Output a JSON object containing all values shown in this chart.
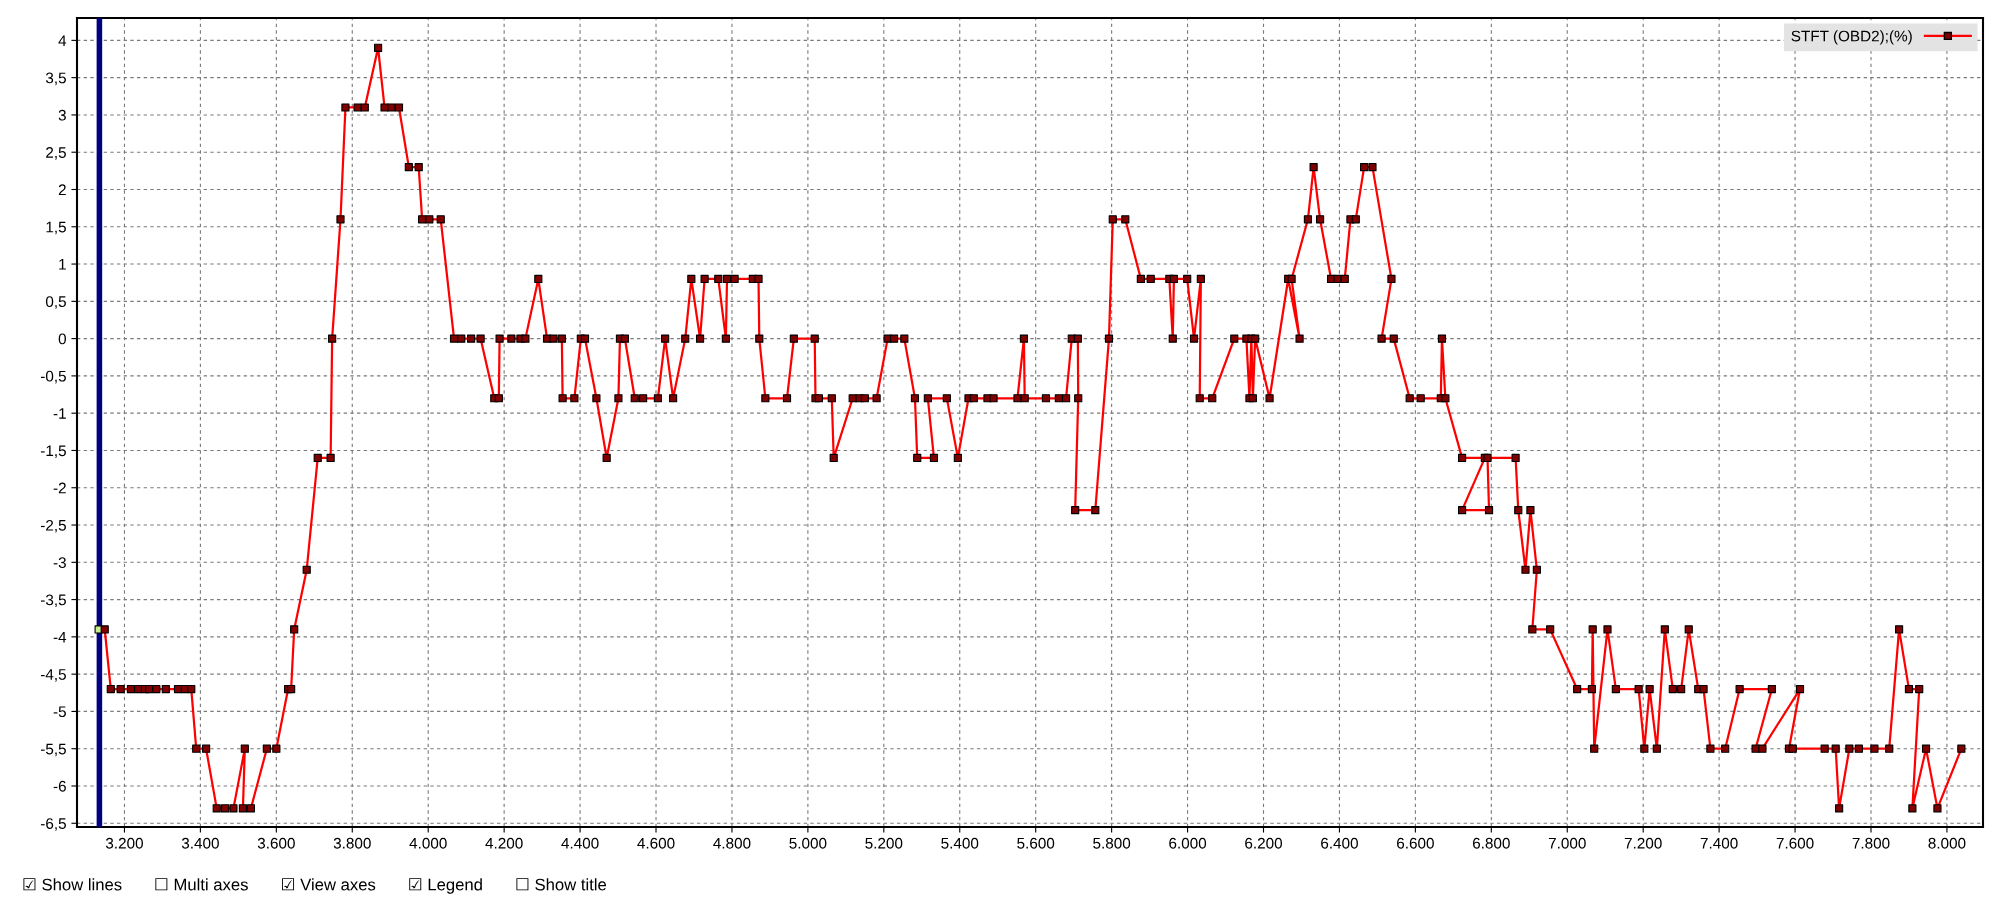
{
  "chart_data": {
    "type": "line",
    "series": [
      {
        "name": "STFT (OBD2);(%)",
        "color": "#ff0000",
        "x": [
          3132,
          3148,
          3164,
          3190,
          3217,
          3236,
          3254,
          3265,
          3284,
          3309,
          3341,
          3359,
          3376,
          3389,
          3415,
          3443,
          3465,
          3487,
          3517,
          3512,
          3533,
          3575,
          3600,
          3631,
          3639,
          3647,
          3680,
          3709,
          3743,
          3747,
          3769,
          3782,
          3814,
          3833,
          3868,
          3885,
          3903,
          3923,
          3949,
          3975,
          3984,
          4003,
          4033,
          4068,
          4087,
          4113,
          4138,
          4174,
          4186,
          4188,
          4219,
          4243,
          4256,
          4290,
          4313,
          4330,
          4352,
          4354,
          4385,
          4402,
          4413,
          4443,
          4470,
          4501,
          4505,
          4518,
          4544,
          4566,
          4605,
          4624,
          4645,
          4677,
          4693,
          4716,
          4728,
          4764,
          4784,
          4787,
          4807,
          4855,
          4870,
          4872,
          4888,
          4945,
          4963,
          5018,
          5020,
          5029,
          5063,
          5068,
          5118,
          5136,
          5150,
          5181,
          5210,
          5227,
          5254,
          5282,
          5288,
          5332,
          5316,
          5366,
          5395,
          5423,
          5437,
          5473,
          5489,
          5552,
          5569,
          5571,
          5627,
          5661,
          5680,
          5695,
          5711,
          5712,
          5704,
          5757,
          5793,
          5803,
          5836,
          5877,
          5903,
          5952,
          5961,
          5964,
          5999,
          6017,
          6035,
          6032,
          6065,
          6123,
          6155,
          6163,
          6168,
          6172,
          6178,
          6216,
          6265,
          6295,
          6274,
          6317,
          6332,
          6349,
          6378,
          6395,
          6414,
          6429,
          6443,
          6465,
          6487,
          6537,
          6511,
          6543,
          6585,
          6614,
          6667,
          6670,
          6679,
          6723,
          6783,
          6723,
          6794,
          6790,
          6864,
          6871,
          6890,
          6903,
          6920,
          6908,
          6955,
          7026,
          7065,
          7067,
          7071,
          7106,
          7128,
          7188,
          7203,
          7217,
          7236,
          7257,
          7278,
          7300,
          7320,
          7345,
          7359,
          7377,
          7416,
          7454,
          7539,
          7496,
          7514,
          7613,
          7584,
          7594,
          7678,
          7707,
          7716,
          7743,
          7768,
          7809,
          7848,
          7874,
          7900,
          7927,
          7909,
          7945,
          7975,
          8038
        ],
        "values": [
          -3.9,
          -3.9,
          -4.7,
          -4.7,
          -4.7,
          -4.7,
          -4.7,
          -4.7,
          -4.7,
          -4.7,
          -4.7,
          -4.7,
          -4.7,
          -5.5,
          -5.5,
          -6.3,
          -6.3,
          -6.3,
          -5.5,
          -6.3,
          -6.3,
          -5.5,
          -5.5,
          -4.7,
          -4.7,
          -3.9,
          -3.1,
          -1.6,
          -1.6,
          0,
          1.6,
          3.1,
          3.1,
          3.1,
          3.9,
          3.1,
          3.1,
          3.1,
          2.3,
          2.3,
          1.6,
          1.6,
          1.6,
          0,
          0,
          0,
          0,
          -0.8,
          -0.8,
          0,
          0,
          0,
          0,
          0.8,
          0,
          0,
          0,
          -0.8,
          -0.8,
          0,
          0,
          -0.8,
          -1.6,
          -0.8,
          0,
          0,
          -0.8,
          -0.8,
          -0.8,
          0,
          -0.8,
          0,
          0.8,
          0,
          0.8,
          0.8,
          0,
          0.8,
          0.8,
          0.8,
          0.8,
          0,
          -0.8,
          -0.8,
          0,
          0,
          -0.8,
          -0.8,
          -0.8,
          -1.6,
          -0.8,
          -0.8,
          -0.8,
          -0.8,
          0,
          0,
          0,
          -0.8,
          -1.6,
          -1.6,
          -0.8,
          -0.8,
          -1.6,
          -0.8,
          -0.8,
          -0.8,
          -0.8,
          -0.8,
          0,
          -0.8,
          -0.8,
          -0.8,
          -0.8,
          0,
          0,
          -0.8,
          -2.3,
          -2.3,
          0,
          1.6,
          1.6,
          0.8,
          0.8,
          0.8,
          0,
          0.8,
          0.8,
          0,
          0.8,
          -0.8,
          -0.8,
          0,
          0,
          -0.8,
          0,
          -0.8,
          0,
          -0.8,
          0.8,
          0,
          0.8,
          1.6,
          2.3,
          1.6,
          0.8,
          0.8,
          0.8,
          1.6,
          1.6,
          2.3,
          2.3,
          0.8,
          0,
          0,
          -0.8,
          -0.8,
          -0.8,
          0,
          -0.8,
          -1.6,
          -1.6,
          -2.3,
          -2.3,
          -1.6,
          -1.6,
          -2.3,
          -3.1,
          -2.3,
          -3.1,
          -3.9,
          -3.9,
          -4.7,
          -4.7,
          -3.9,
          -5.5,
          -3.9,
          -4.7,
          -4.7,
          -5.5,
          -4.7,
          -5.5,
          -3.9,
          -4.7,
          -4.7,
          -3.9,
          -4.7,
          -4.7,
          -5.5,
          -5.5,
          -4.7,
          -4.7,
          -5.5,
          -5.5,
          -4.7,
          -5.5,
          -5.5,
          -5.5,
          -5.5,
          -6.3,
          -5.5,
          -5.5,
          -5.5,
          -5.5,
          -3.9,
          -4.7,
          -4.7,
          -6.3,
          -5.5,
          -6.3,
          -5.5
        ],
        "colors": [
          "#c8f08c",
          "#800000",
          "#800000",
          "#800000",
          "#800000",
          "#800000",
          "#800000",
          "#800000",
          "#800000",
          "#800000",
          "#800000",
          "#800000",
          "#800000",
          "#800000",
          "#800000",
          "#800000",
          "#800000",
          "#800000",
          "#800000",
          "#800000",
          "#800000",
          "#800000",
          "#800000",
          "#800000",
          "#800000",
          "#800000",
          "#800000",
          "#800000",
          "#800000",
          "#800000",
          "#800000",
          "#800000",
          "#800000",
          "#800000",
          "#800000",
          "#800000",
          "#800000",
          "#800000",
          "#800000",
          "#800000",
          "#800000",
          "#800000",
          "#800000",
          "#800000",
          "#800000",
          "#800000",
          "#800000",
          "#800000",
          "#800000",
          "#800000",
          "#800000",
          "#800000",
          "#800000",
          "#800000",
          "#800000",
          "#800000",
          "#800000",
          "#800000",
          "#800000",
          "#800000",
          "#800000",
          "#800000",
          "#800000",
          "#800000",
          "#800000",
          "#800000",
          "#800000",
          "#800000",
          "#800000",
          "#800000",
          "#800000",
          "#800000",
          "#800000",
          "#800000",
          "#800000",
          "#800000",
          "#800000",
          "#800000",
          "#800000",
          "#800000",
          "#800000",
          "#800000",
          "#800000",
          "#800000",
          "#800000",
          "#800000",
          "#800000",
          "#800000",
          "#800000",
          "#800000",
          "#800000",
          "#800000",
          "#800000",
          "#800000",
          "#800000",
          "#800000",
          "#800000",
          "#800000",
          "#800000",
          "#800000",
          "#800000",
          "#800000",
          "#800000",
          "#800000",
          "#800000",
          "#800000",
          "#800000",
          "#800000",
          "#800000",
          "#800000",
          "#800000",
          "#800000",
          "#800000",
          "#800000",
          "#800000",
          "#800000",
          "#800000",
          "#800000",
          "#800000",
          "#800000",
          "#800000",
          "#800000",
          "#800000",
          "#800000",
          "#800000",
          "#800000",
          "#800000",
          "#800000",
          "#800000",
          "#800000",
          "#800000",
          "#800000",
          "#800000",
          "#800000",
          "#800000",
          "#800000",
          "#800000",
          "#800000",
          "#800000",
          "#800000",
          "#800000",
          "#800000",
          "#800000",
          "#800000",
          "#800000",
          "#800000",
          "#800000",
          "#800000",
          "#800000",
          "#800000",
          "#800000",
          "#800000",
          "#800000",
          "#800000",
          "#800000",
          "#800000",
          "#800000",
          "#800000",
          "#800000",
          "#800000",
          "#800000",
          "#800000",
          "#800000",
          "#800000",
          "#800000",
          "#800000",
          "#800000",
          "#800000",
          "#800000",
          "#800000",
          "#800000",
          "#800000",
          "#800000",
          "#800000",
          "#800000",
          "#800000",
          "#800000",
          "#800000",
          "#800000",
          "#800000",
          "#800000",
          "#800000",
          "#800000",
          "#800000",
          "#800000",
          "#800000",
          "#800000",
          "#800000",
          "#800000",
          "#800000",
          "#800000",
          "#800000",
          "#800000",
          "#800000",
          "#800000",
          "#800000",
          "#800000",
          "#800000",
          "#800000",
          "#800000",
          "#800000",
          "#800000",
          "#800000",
          "#800000",
          "#800000",
          "#800000",
          "#800000",
          "#800000",
          "#800000",
          "#800000"
        ]
      }
    ],
    "xlim": [
      3075,
      8095
    ],
    "ylim": [
      -6.55,
      4.3
    ],
    "xticks": [
      {
        "value": 3200,
        "label": "3.200"
      },
      {
        "value": 3400,
        "label": "3.400"
      },
      {
        "value": 3600,
        "label": "3.600"
      },
      {
        "value": 3800,
        "label": "3.800"
      },
      {
        "value": 4000,
        "label": "4.000"
      },
      {
        "value": 4200,
        "label": "4.200"
      },
      {
        "value": 4400,
        "label": "4.400"
      },
      {
        "value": 4600,
        "label": "4.600"
      },
      {
        "value": 4800,
        "label": "4.800"
      },
      {
        "value": 5000,
        "label": "5.000"
      },
      {
        "value": 5200,
        "label": "5.200"
      },
      {
        "value": 5400,
        "label": "5.400"
      },
      {
        "value": 5600,
        "label": "5.600"
      },
      {
        "value": 5800,
        "label": "5.800"
      },
      {
        "value": 6000,
        "label": "6.000"
      },
      {
        "value": 6200,
        "label": "6.200"
      },
      {
        "value": 6400,
        "label": "6.400"
      },
      {
        "value": 6600,
        "label": "6.600"
      },
      {
        "value": 6800,
        "label": "6.800"
      },
      {
        "value": 7000,
        "label": "7.000"
      },
      {
        "value": 7200,
        "label": "7.200"
      },
      {
        "value": 7400,
        "label": "7.400"
      },
      {
        "value": 7600,
        "label": "7.600"
      },
      {
        "value": 7800,
        "label": "7.800"
      },
      {
        "value": 8000,
        "label": "8.000"
      }
    ],
    "yticks": [
      4,
      {
        "value": 3.5,
        "label": "3,5"
      },
      3,
      {
        "value": 2.5,
        "label": "2,5"
      },
      2,
      {
        "value": 1.5,
        "label": "1,5"
      },
      1,
      {
        "value": 0.5,
        "label": "0,5"
      },
      0,
      {
        "value": -0.5,
        "label": "-0,5"
      },
      -1,
      {
        "value": -1.5,
        "label": "-1,5"
      },
      -2,
      {
        "value": -2.5,
        "label": "-2,5"
      },
      -3,
      {
        "value": -3.5,
        "label": "-3,5"
      },
      -4,
      {
        "value": -4.5,
        "label": "-4,5"
      },
      -5,
      {
        "value": -5.5,
        "label": "-5,5"
      },
      -6,
      {
        "value": -6.5,
        "label": "-6,5"
      }
    ],
    "grid": true,
    "legend": "top right",
    "marker": "square",
    "line_style": "solid",
    "ref_lines": [
      {
        "axis": "x",
        "value": 3134,
        "color": "#000080"
      }
    ],
    "annotations": [
      "☑ Show lines",
      "☐ Multi axes",
      "☑ View axes",
      "☑ Legend",
      "☐ Show title"
    ]
  }
}
